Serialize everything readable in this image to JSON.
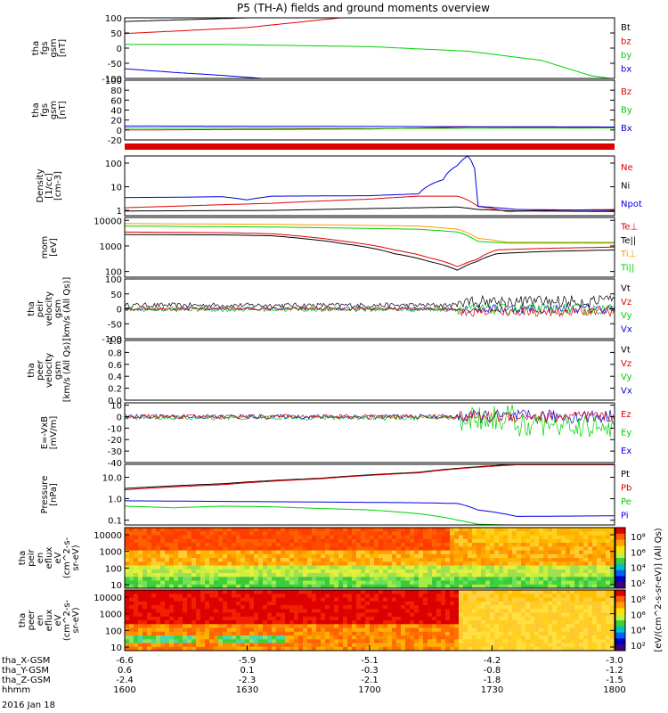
{
  "title": "P5 (TH-A) fields and ground moments overview",
  "date": "2016 Jan 18",
  "colors": {
    "black": "#000000",
    "red": "#e00000",
    "green": "#00d000",
    "blue": "#0000e0",
    "orange": "#ff9900"
  },
  "chart_data": [
    {
      "type": "line",
      "ylabel": [
        "tha",
        "fgs",
        "gsm",
        "[nT]"
      ],
      "yticks": [
        "100",
        "50",
        "0",
        "-50",
        "-100"
      ],
      "ylim": [
        -100,
        100
      ],
      "legend": [
        {
          "name": "Bt",
          "color": "black"
        },
        {
          "name": "bz",
          "color": "red"
        },
        {
          "name": "by",
          "color": "green"
        },
        {
          "name": "bx",
          "color": "blue"
        }
      ],
      "series": [
        {
          "name": "Bt",
          "color": "black",
          "x": [
            0,
            0.25,
            0.5
          ],
          "y": [
            88,
            100,
            115
          ]
        },
        {
          "name": "bz",
          "color": "red",
          "x": [
            0,
            0.25,
            0.5
          ],
          "y": [
            48,
            68,
            110
          ]
        },
        {
          "name": "by",
          "color": "green",
          "x": [
            0,
            0.2,
            0.5,
            0.7,
            0.85,
            0.95,
            0.99
          ],
          "y": [
            12,
            12,
            5,
            -10,
            -40,
            -90,
            -100
          ]
        },
        {
          "name": "bx",
          "color": "blue",
          "x": [
            0,
            0.1,
            0.2,
            0.28
          ],
          "y": [
            -68,
            -80,
            -90,
            -100
          ]
        }
      ]
    },
    {
      "type": "line",
      "ylabel": [
        "tha",
        "fgs",
        "gsm",
        "[nT]"
      ],
      "yticks": [
        "100",
        "80",
        "60",
        "40",
        "20",
        "0",
        "-20"
      ],
      "ylim": [
        -20,
        100
      ],
      "legend": [
        {
          "name": "Bz",
          "color": "red"
        },
        {
          "name": "By",
          "color": "green"
        },
        {
          "name": "Bx",
          "color": "blue"
        }
      ],
      "series": [
        {
          "name": "Bz",
          "color": "red",
          "x": [
            0,
            0.5,
            0.7,
            1
          ],
          "y": [
            0,
            2,
            6,
            5
          ]
        },
        {
          "name": "By",
          "color": "green",
          "x": [
            0,
            0.5,
            1
          ],
          "y": [
            4,
            3,
            4
          ]
        },
        {
          "name": "Bx",
          "color": "blue",
          "x": [
            0,
            0.5,
            1
          ],
          "y": [
            8,
            7,
            6
          ]
        }
      ]
    },
    {
      "type": "line",
      "scale": "log",
      "ylabel": [
        "Density",
        "[1/cc]",
        "[cm-3]"
      ],
      "yticks": [
        "100",
        "10",
        "1"
      ],
      "ylim": [
        0.6,
        200
      ],
      "legend": [
        {
          "name": "Ne",
          "color": "red"
        },
        {
          "name": "Ni",
          "color": "black"
        },
        {
          "name": "Npot",
          "color": "blue"
        }
      ],
      "series": [
        {
          "name": "Ne",
          "color": "red",
          "x": [
            0,
            0.1,
            0.3,
            0.5,
            0.6,
            0.68,
            0.72,
            0.78,
            0.85,
            1
          ],
          "y": [
            1.3,
            1.5,
            2,
            3,
            4,
            4,
            1.5,
            0.9,
            1.0,
            1.1
          ]
        },
        {
          "name": "Ni",
          "color": "black",
          "x": [
            0,
            0.3,
            0.6,
            0.68,
            0.72,
            0.8,
            1
          ],
          "y": [
            0.95,
            1.0,
            1.3,
            1.4,
            1.1,
            0.95,
            0.9
          ]
        },
        {
          "name": "Npot",
          "color": "blue",
          "x": [
            0,
            0.1,
            0.2,
            0.25,
            0.3,
            0.5,
            0.6,
            0.65,
            0.68,
            0.7,
            0.72,
            0.8,
            1
          ],
          "y": [
            3.5,
            3.6,
            3.8,
            2.8,
            4,
            4.2,
            5,
            20,
            80,
            200,
            1.5,
            1.1,
            1.0
          ]
        }
      ]
    },
    {
      "type": "line",
      "scale": "log",
      "ylabel": [
        "mom",
        "[eV]"
      ],
      "yticks": [
        "10000",
        "1000",
        "100"
      ],
      "ylim": [
        60,
        13000
      ],
      "legend": [
        {
          "name": "Te⊥",
          "color": "red"
        },
        {
          "name": "Te||",
          "color": "black"
        },
        {
          "name": "Ti⊥",
          "color": "orange"
        },
        {
          "name": "Ti||",
          "color": "green"
        }
      ],
      "series": [
        {
          "name": "Ti||",
          "color": "green",
          "x": [
            0,
            0.3,
            0.45,
            0.6,
            0.68,
            0.72,
            0.78,
            1
          ],
          "y": [
            6000,
            5500,
            5000,
            4500,
            3500,
            1500,
            1300,
            1300
          ]
        },
        {
          "name": "Ti⊥",
          "color": "orange",
          "x": [
            0,
            0.3,
            0.45,
            0.6,
            0.68,
            0.72,
            0.78,
            1
          ],
          "y": [
            7500,
            7000,
            6500,
            6000,
            4500,
            2000,
            1400,
            1400
          ]
        },
        {
          "name": "Te⊥",
          "color": "red",
          "x": [
            0,
            0.2,
            0.3,
            0.45,
            0.55,
            0.62,
            0.68,
            0.72,
            0.76,
            0.85,
            1
          ],
          "y": [
            3500,
            3300,
            3000,
            1500,
            700,
            350,
            150,
            300,
            700,
            800,
            900
          ]
        },
        {
          "name": "Te||",
          "color": "black",
          "x": [
            0,
            0.2,
            0.3,
            0.45,
            0.55,
            0.62,
            0.68,
            0.72,
            0.76,
            0.85,
            1
          ],
          "y": [
            2800,
            2700,
            2500,
            1200,
            500,
            250,
            110,
            250,
            500,
            600,
            700
          ]
        }
      ]
    },
    {
      "type": "line",
      "ylabel": [
        "tha",
        "peir",
        "velocity",
        "gsm",
        "[km/s (All Qs)]"
      ],
      "yticks": [
        "100",
        "50",
        "0",
        "-50",
        "-100"
      ],
      "ylim": [
        -100,
        100
      ],
      "legend": [
        {
          "name": "Vt",
          "color": "black"
        },
        {
          "name": "Vz",
          "color": "red"
        },
        {
          "name": "Vy",
          "color": "green"
        },
        {
          "name": "Vx",
          "color": "blue"
        }
      ],
      "series": []
    },
    {
      "type": "line",
      "ylabel": [
        "tha",
        "peer",
        "velocity",
        "gsm",
        "[km/s (All Qs)]"
      ],
      "yticks": [
        "1.0",
        "0.8",
        "0.6",
        "0.4",
        "0.2",
        "0.0"
      ],
      "ylim": [
        0,
        1
      ],
      "legend": [
        {
          "name": "Vt",
          "color": "black"
        },
        {
          "name": "Vz",
          "color": "red"
        },
        {
          "name": "Vy",
          "color": "green"
        },
        {
          "name": "Vx",
          "color": "blue"
        }
      ],
      "series": []
    },
    {
      "type": "line",
      "ylabel": [
        "E=-VxB",
        "[mV/m]"
      ],
      "yticks": [
        "10",
        "0",
        "-10",
        "-20",
        "-30",
        "-40"
      ],
      "ylim": [
        -40,
        12
      ],
      "legend": [
        {
          "name": "Ez",
          "color": "red"
        },
        {
          "name": "Ey",
          "color": "green"
        },
        {
          "name": "Ex",
          "color": "blue"
        }
      ],
      "series": []
    },
    {
      "type": "line",
      "scale": "log",
      "ylabel": [
        "Pressure",
        "[nPa]"
      ],
      "yticks": [
        "10.0",
        "1.0",
        "0.1"
      ],
      "ylim": [
        0.06,
        40
      ],
      "legend": [
        {
          "name": "Pt",
          "color": "black"
        },
        {
          "name": "Pb",
          "color": "red"
        },
        {
          "name": "Pe",
          "color": "green"
        },
        {
          "name": "Pi",
          "color": "blue"
        }
      ],
      "series": [
        {
          "name": "Pt",
          "color": "black",
          "x": [
            0,
            0.2,
            0.4,
            0.6,
            0.8
          ],
          "y": [
            3,
            5,
            9,
            17,
            40
          ]
        },
        {
          "name": "Pb",
          "color": "red",
          "x": [
            0,
            0.2,
            0.4,
            0.6,
            0.8
          ],
          "y": [
            2.6,
            4.5,
            8.5,
            16,
            38
          ]
        },
        {
          "name": "Pi",
          "color": "blue",
          "x": [
            0,
            0.2,
            0.4,
            0.6,
            0.68,
            0.72,
            0.8,
            1
          ],
          "y": [
            0.8,
            0.75,
            0.7,
            0.65,
            0.6,
            0.3,
            0.15,
            0.16
          ]
        },
        {
          "name": "Pe",
          "color": "green",
          "x": [
            0,
            0.1,
            0.2,
            0.3,
            0.4,
            0.5,
            0.6,
            0.68,
            0.72,
            0.78,
            1
          ],
          "y": [
            0.45,
            0.38,
            0.45,
            0.42,
            0.35,
            0.3,
            0.2,
            0.1,
            0.065,
            0.06,
            0.06
          ]
        }
      ]
    },
    {
      "type": "heatmap",
      "ylabel": [
        "tha",
        "peir",
        "en",
        "eflux",
        "eV",
        "(cm^2-s-",
        "sr-eV)"
      ],
      "yticks": [
        "10000",
        "1000",
        "100",
        "10"
      ]
    },
    {
      "type": "heatmap",
      "ylabel": [
        "tha",
        "peer",
        "en",
        "eflux",
        "eV",
        "(cm^2-s-",
        "sr-eV)"
      ],
      "yticks": [
        "10000",
        "1000",
        "100",
        "10"
      ]
    }
  ],
  "colorbar": {
    "label": "[eV/(cm^2-s-sr-eV)] (All Qs)",
    "ticks1": [
      "10⁸",
      "10⁶",
      "10⁴",
      "10²"
    ],
    "ticks2": [
      "10⁸",
      "10⁶",
      "10⁴",
      "10²"
    ]
  },
  "xaxis": {
    "rows": [
      {
        "label": "tha_X-GSM",
        "values": [
          "-6.6",
          "-5.9",
          "-5.1",
          "-4.2",
          "-3.0"
        ]
      },
      {
        "label": "tha_Y-GSM",
        "values": [
          "0.6",
          "0.1",
          "-0.3",
          "-0.8",
          "-1.2"
        ]
      },
      {
        "label": "tha_Z-GSM",
        "values": [
          "-2.4",
          "-2.3",
          "-2.1",
          "-1.8",
          "-1.5"
        ]
      },
      {
        "label": "hhmm",
        "values": [
          "1600",
          "1630",
          "1700",
          "1730",
          "1800"
        ]
      }
    ]
  }
}
